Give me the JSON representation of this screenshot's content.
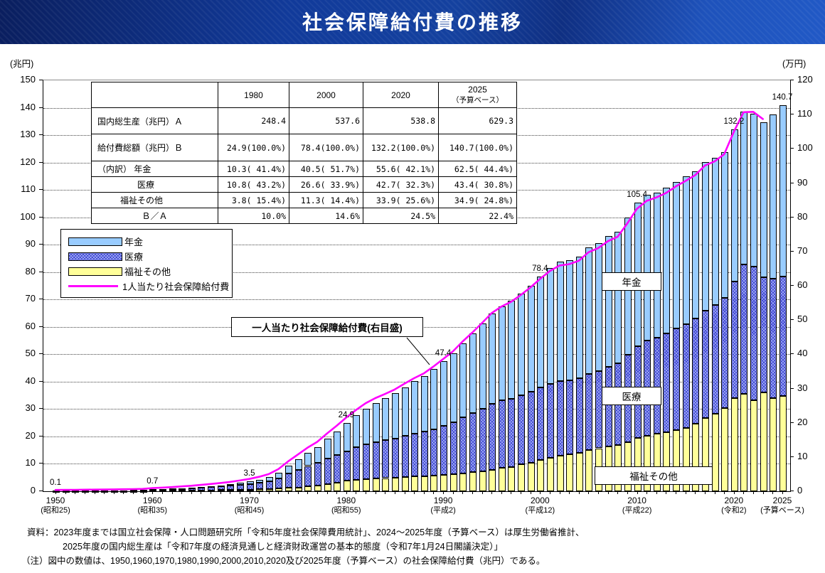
{
  "header": {
    "title": "社会保障給付費の推移"
  },
  "axis_units": {
    "left": "(兆円)",
    "right": "(万円)"
  },
  "legend": {
    "items": [
      {
        "label": "年金",
        "swatch": "pension"
      },
      {
        "label": "医療",
        "swatch": "medical"
      },
      {
        "label": "福祉その他",
        "swatch": "welfare"
      },
      {
        "label": "1人当たり社会保障給付費",
        "swatch": "line"
      }
    ]
  },
  "chart_labels": {
    "pension_box": "年金",
    "medical_box": "医療",
    "welfare_box": "福祉その他",
    "callout": "一人当たり社会保障給付費(右目盛)"
  },
  "table": {
    "col_headers": [
      {
        "label": "1980",
        "sub": ""
      },
      {
        "label": "2000",
        "sub": ""
      },
      {
        "label": "2020",
        "sub": ""
      },
      {
        "label": "2025",
        "sub": "（予算ベース）"
      }
    ],
    "rows": [
      {
        "label": "国内総生産（兆円）Ａ",
        "values": [
          "248.4",
          "537.6",
          "538.8",
          "629.3"
        ]
      },
      {
        "label": "給付費総額（兆円）Ｂ",
        "values": [
          "24.9(100.0%)",
          "78.4(100.0%)",
          "132.2(100.0%)",
          "140.7(100.0%)"
        ]
      },
      {
        "label": "（内訳） 年金",
        "values": [
          "10.3( 41.4%)",
          "40.5( 51.7%)",
          "55.6( 42.1%)",
          "62.5( 44.4%)"
        ]
      },
      {
        "label": "医療",
        "values": [
          "10.8( 43.2%)",
          "26.6( 33.9%)",
          "42.7( 32.3%)",
          "43.4( 30.8%)"
        ]
      },
      {
        "label": "福祉その他",
        "values": [
          "3.8( 15.4%)",
          "11.3( 14.4%)",
          "33.9( 25.6%)",
          "34.9( 24.8%)"
        ]
      },
      {
        "label": "Ｂ／Ａ",
        "values": [
          "10.0%",
          "14.6%",
          "24.5%",
          "22.4%"
        ]
      }
    ]
  },
  "notes": [
    "資料：2023年度までは国立社会保障・人口問題研究所「令和5年度社会保障費用統計」、2024～2025年度（予算ベース）は厚生労働省推計、",
    "2025年度の国内総生産は「令和7年度の経済見通しと経済財政運営の基本的態度（令和7年1月24日閣議決定）」",
    "（注）図中の数値は、1950,1960,1970,1980,1990,2000,2010,2020及び2025年度（予算ベース）の社会保障給付費（兆円）である。"
  ],
  "colors": {
    "pension": "#99CCFF",
    "medical": "#3A3FD0",
    "welfare": "#FFFF99",
    "line": "#FF00FF",
    "banner": "#113A9A",
    "grid": "#444444"
  },
  "chart_data": {
    "type": "bar",
    "subtype": "stacked-bars-with-line",
    "title": "社会保障給付費の推移",
    "x_start_year": 1950,
    "x_end_year": 2025,
    "left_axis": {
      "min": 0,
      "max": 150,
      "step": 10,
      "unit": "兆円"
    },
    "right_axis": {
      "min": 0,
      "max": 120,
      "step": 10,
      "unit": "万円"
    },
    "grid": "horizontal-dotted-every-10-trillion",
    "legend_position": "upper-left-inside",
    "series": [
      {
        "name": "年金",
        "key": "pension",
        "values": [
          0.01,
          0.01,
          0.01,
          0.02,
          0.02,
          0.03,
          0.03,
          0.04,
          0.05,
          0.06,
          0.1,
          0.13,
          0.16,
          0.21,
          0.26,
          0.32,
          0.4,
          0.48,
          0.59,
          0.71,
          0.84,
          1.08,
          1.41,
          2.0,
          2.93,
          3.89,
          4.89,
          5.9,
          7.26,
          8.69,
          10.3,
          11.7,
          13.0,
          14.2,
          15.3,
          16.4,
          17.7,
          19.0,
          20.2,
          21.9,
          23.6,
          25.2,
          27.2,
          29.0,
          31.1,
          33.2,
          34.5,
          35.7,
          37.1,
          38.8,
          40.5,
          42.3,
          43.4,
          43.8,
          44.5,
          46.2,
          46.6,
          47.6,
          48.0,
          50.2,
          52.4,
          53.2,
          53.0,
          53.2,
          53.6,
          54.0,
          53.8,
          54.1,
          53.6,
          53.4,
          55.6,
          55.8,
          55.9,
          56.7,
          60.0,
          62.5
        ]
      },
      {
        "name": "医療",
        "key": "medical",
        "values": [
          0.07,
          0.08,
          0.1,
          0.12,
          0.14,
          0.16,
          0.18,
          0.2,
          0.23,
          0.27,
          0.4,
          0.48,
          0.57,
          0.69,
          0.81,
          0.96,
          1.14,
          1.31,
          1.51,
          1.78,
          2.08,
          2.44,
          2.93,
          3.85,
          5.25,
          6.49,
          7.42,
          8.15,
          9.15,
          9.99,
          10.8,
          11.8,
          12.7,
          13.3,
          13.8,
          14.3,
          15.0,
          15.7,
          16.3,
          17.0,
          17.9,
          18.9,
          20.3,
          21.4,
          22.8,
          24.1,
          24.6,
          24.9,
          25.3,
          25.9,
          26.6,
          27.2,
          27.4,
          27.2,
          27.1,
          27.6,
          28.2,
          29.2,
          29.9,
          31.7,
          33.6,
          34.7,
          35.2,
          36.0,
          37.0,
          37.9,
          38.5,
          39.3,
          39.6,
          40.1,
          42.7,
          47.4,
          48.7,
          42.1,
          43.5,
          43.4
        ]
      },
      {
        "name": "福祉その他",
        "key": "welfare",
        "values": [
          0.05,
          0.06,
          0.07,
          0.07,
          0.08,
          0.09,
          0.09,
          0.1,
          0.11,
          0.12,
          0.16,
          0.19,
          0.22,
          0.25,
          0.28,
          0.32,
          0.36,
          0.41,
          0.45,
          0.51,
          0.6,
          0.68,
          0.76,
          0.95,
          1.22,
          1.42,
          1.79,
          2.15,
          2.69,
          3.22,
          3.8,
          4.2,
          4.5,
          4.7,
          4.8,
          5.0,
          5.3,
          5.4,
          5.5,
          5.7,
          5.9,
          6.2,
          6.6,
          7.1,
          7.3,
          7.7,
          8.5,
          8.9,
          9.8,
          10.4,
          11.3,
          12.1,
          12.9,
          13.4,
          14.1,
          15.1,
          15.7,
          16.3,
          16.9,
          18.0,
          19.4,
          20.2,
          20.9,
          21.5,
          22.3,
          23.0,
          24.6,
          26.7,
          28.4,
          30.4,
          33.9,
          35.5,
          33.2,
          36.0,
          34.0,
          34.9
        ]
      }
    ],
    "line": {
      "name": "1人当たり社会保障給付費",
      "axis": "right",
      "x_start_year": 1950,
      "x_end_year": 2023,
      "values": [
        0.16,
        0.18,
        0.21,
        0.24,
        0.27,
        0.3,
        0.33,
        0.37,
        0.42,
        0.48,
        0.71,
        0.85,
        1.0,
        1.2,
        1.39,
        1.63,
        1.92,
        2.2,
        2.52,
        2.93,
        3.39,
        4.0,
        4.8,
        6.24,
        8.5,
        10.5,
        12.5,
        14.2,
        16.6,
        18.9,
        21.3,
        23.5,
        25.5,
        27.0,
        28.2,
        29.5,
        31.2,
        32.8,
        34.2,
        36.2,
        38.4,
        40.6,
        43.5,
        46.1,
        48.9,
        51.8,
        53.7,
        55.1,
        57.1,
        59.3,
        61.8,
        64.1,
        65.7,
        66.1,
        67.1,
        69.6,
        70.8,
        72.8,
        74.1,
        78.0,
        82.3,
        84.6,
        85.6,
        86.9,
        88.8,
        90.4,
        92.1,
        94.9,
        96.1,
        98.2,
        104.8,
        110.5,
        110.6,
        108.5
      ]
    },
    "bar_value_labels": [
      {
        "year": 1950,
        "text": "0.1"
      },
      {
        "year": 1960,
        "text": "0.7"
      },
      {
        "year": 1970,
        "text": "3.5"
      },
      {
        "year": 1980,
        "text": "24.9"
      },
      {
        "year": 1990,
        "text": "47.4"
      },
      {
        "year": 2000,
        "text": "78.4"
      },
      {
        "year": 2010,
        "text": "105.4"
      },
      {
        "year": 2020,
        "text": "132.2"
      },
      {
        "year": 2025,
        "text": "140.7"
      }
    ],
    "x_tick_labels": [
      {
        "year": 1950,
        "line1": "1950",
        "line2": "(昭和25)"
      },
      {
        "year": 1960,
        "line1": "1960",
        "line2": "(昭和35)"
      },
      {
        "year": 1970,
        "line1": "1970",
        "line2": "(昭和45)"
      },
      {
        "year": 1980,
        "line1": "1980",
        "line2": "(昭和55)"
      },
      {
        "year": 1990,
        "line1": "1990",
        "line2": "(平成2)"
      },
      {
        "year": 2000,
        "line1": "2000",
        "line2": "(平成12)"
      },
      {
        "year": 2010,
        "line1": "2010",
        "line2": "(平成22)"
      },
      {
        "year": 2020,
        "line1": "2020",
        "line2": "(令和2)"
      },
      {
        "year": 2025,
        "line1": "2025",
        "line2": "(予算ベース)"
      }
    ]
  }
}
